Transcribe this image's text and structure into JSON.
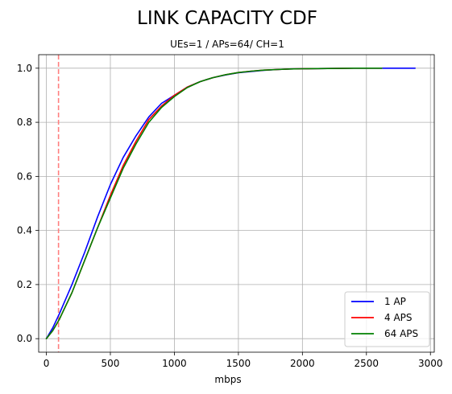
{
  "chart_data": {
    "type": "line",
    "title": "LINK CAPACITY CDF",
    "subtitle": "UEs=1 / APs=64/ CH=1",
    "xlabel": "mbps",
    "ylabel": "",
    "xlim": [
      -60,
      3030
    ],
    "ylim": [
      -0.05,
      1.05
    ],
    "x_ticks": [
      0,
      500,
      1000,
      1500,
      2000,
      2500,
      3000
    ],
    "x_tick_labels": [
      "0",
      "500",
      "1000",
      "1500",
      "2000",
      "2500",
      "3000"
    ],
    "y_ticks": [
      0.0,
      0.2,
      0.4,
      0.6,
      0.8,
      1.0
    ],
    "y_tick_labels": [
      "0.0",
      "0.2",
      "0.4",
      "0.6",
      "0.8",
      "1.0"
    ],
    "grid": true,
    "legend_position": "lower-right",
    "reference_line": {
      "x": 95,
      "color": "#ff7f7f",
      "style": "dashed"
    },
    "series": [
      {
        "name": "1 AP",
        "color": "#0000ff",
        "x": [
          0,
          50,
          100,
          200,
          300,
          400,
          500,
          600,
          700,
          800,
          900,
          1000,
          1100,
          1200,
          1300,
          1400,
          1500,
          1600,
          1700,
          1800,
          1900,
          2000,
          2200,
          2400,
          2600,
          2700,
          2880
        ],
        "y": [
          0.0,
          0.04,
          0.09,
          0.2,
          0.32,
          0.45,
          0.57,
          0.67,
          0.75,
          0.82,
          0.87,
          0.9,
          0.93,
          0.95,
          0.965,
          0.975,
          0.983,
          0.988,
          0.992,
          0.995,
          0.997,
          0.998,
          0.999,
          1.0,
          1.0,
          1.0,
          1.0
        ]
      },
      {
        "name": "4 APS",
        "color": "#ff0000",
        "x": [
          0,
          50,
          100,
          200,
          300,
          400,
          500,
          600,
          700,
          800,
          900,
          1000,
          1100,
          1200,
          1300,
          1400,
          1500,
          1600,
          1700,
          1800,
          1900,
          2000,
          2200,
          2400,
          2620
        ],
        "y": [
          0.0,
          0.03,
          0.07,
          0.17,
          0.29,
          0.41,
          0.53,
          0.64,
          0.73,
          0.81,
          0.86,
          0.9,
          0.93,
          0.95,
          0.965,
          0.976,
          0.984,
          0.989,
          0.993,
          0.995,
          0.997,
          0.998,
          0.999,
          1.0,
          1.0
        ]
      },
      {
        "name": "64 APS",
        "color": "#008000",
        "x": [
          0,
          50,
          100,
          200,
          300,
          400,
          500,
          600,
          700,
          800,
          900,
          1000,
          1100,
          1200,
          1300,
          1400,
          1500,
          1600,
          1700,
          1800,
          1900,
          2000,
          2200,
          2400,
          2620
        ],
        "y": [
          0.0,
          0.03,
          0.07,
          0.17,
          0.29,
          0.41,
          0.52,
          0.63,
          0.72,
          0.8,
          0.855,
          0.895,
          0.928,
          0.95,
          0.965,
          0.976,
          0.984,
          0.989,
          0.993,
          0.995,
          0.997,
          0.998,
          0.999,
          1.0,
          1.0
        ]
      }
    ]
  }
}
